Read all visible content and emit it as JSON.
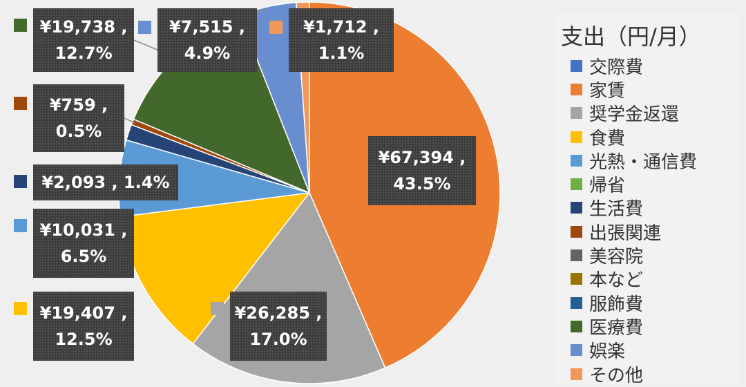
{
  "chart_data": {
    "type": "pie",
    "title": "支出（円/月）",
    "slices": [
      {
        "name": "交際費",
        "value": 0,
        "percent": "0.0%",
        "color": "#4472c4"
      },
      {
        "name": "家賃",
        "value": 67394,
        "percent": "43.5%",
        "color": "#ed7d31",
        "label": "¥67,394 ,",
        "label2": "43.5%"
      },
      {
        "name": "奨学金返還",
        "value": 26285,
        "percent": "17.0%",
        "color": "#a5a5a5",
        "label": "¥26,285 ,",
        "label2": "17.0%"
      },
      {
        "name": "食費",
        "value": 19407,
        "percent": "12.5%",
        "color": "#ffc000",
        "label": "¥19,407 ,",
        "label2": "12.5%"
      },
      {
        "name": "光熱・通信費",
        "value": 10031,
        "percent": "6.5%",
        "color": "#5b9bd5",
        "label": "¥10,031 ,",
        "label2": "6.5%"
      },
      {
        "name": "帰省",
        "value": 0,
        "percent": "0.0%",
        "color": "#70ad47"
      },
      {
        "name": "生活費",
        "value": 2093,
        "percent": "1.4%",
        "color": "#264478",
        "label": "¥2,093 , 1.4%",
        "label2": ""
      },
      {
        "name": "出張関連",
        "value": 759,
        "percent": "0.5%",
        "color": "#9e480e",
        "label": "¥759 ,",
        "label2": "0.5%"
      },
      {
        "name": "美容院",
        "value": 0,
        "percent": "0.0%",
        "color": "#636363"
      },
      {
        "name": "本など",
        "value": 0,
        "percent": "0.0%",
        "color": "#997300"
      },
      {
        "name": "服飾費",
        "value": 0,
        "percent": "0.0%",
        "color": "#255e91"
      },
      {
        "name": "医療費",
        "value": 19738,
        "percent": "12.7%",
        "color": "#43682b",
        "label": "¥19,738 ,",
        "label2": "12.7%"
      },
      {
        "name": "娯楽",
        "value": 7515,
        "percent": "4.9%",
        "color": "#698ed0",
        "label": "¥7,515 ,",
        "label2": "4.9%"
      },
      {
        "name": "その他",
        "value": 1712,
        "percent": "1.1%",
        "color": "#f1975a",
        "label": "¥1,712 ,",
        "label2": "1.1%"
      }
    ],
    "start_angle_deg": 0,
    "direction": "clockwise",
    "legend_position": "right",
    "data_labels": "value, percent"
  }
}
